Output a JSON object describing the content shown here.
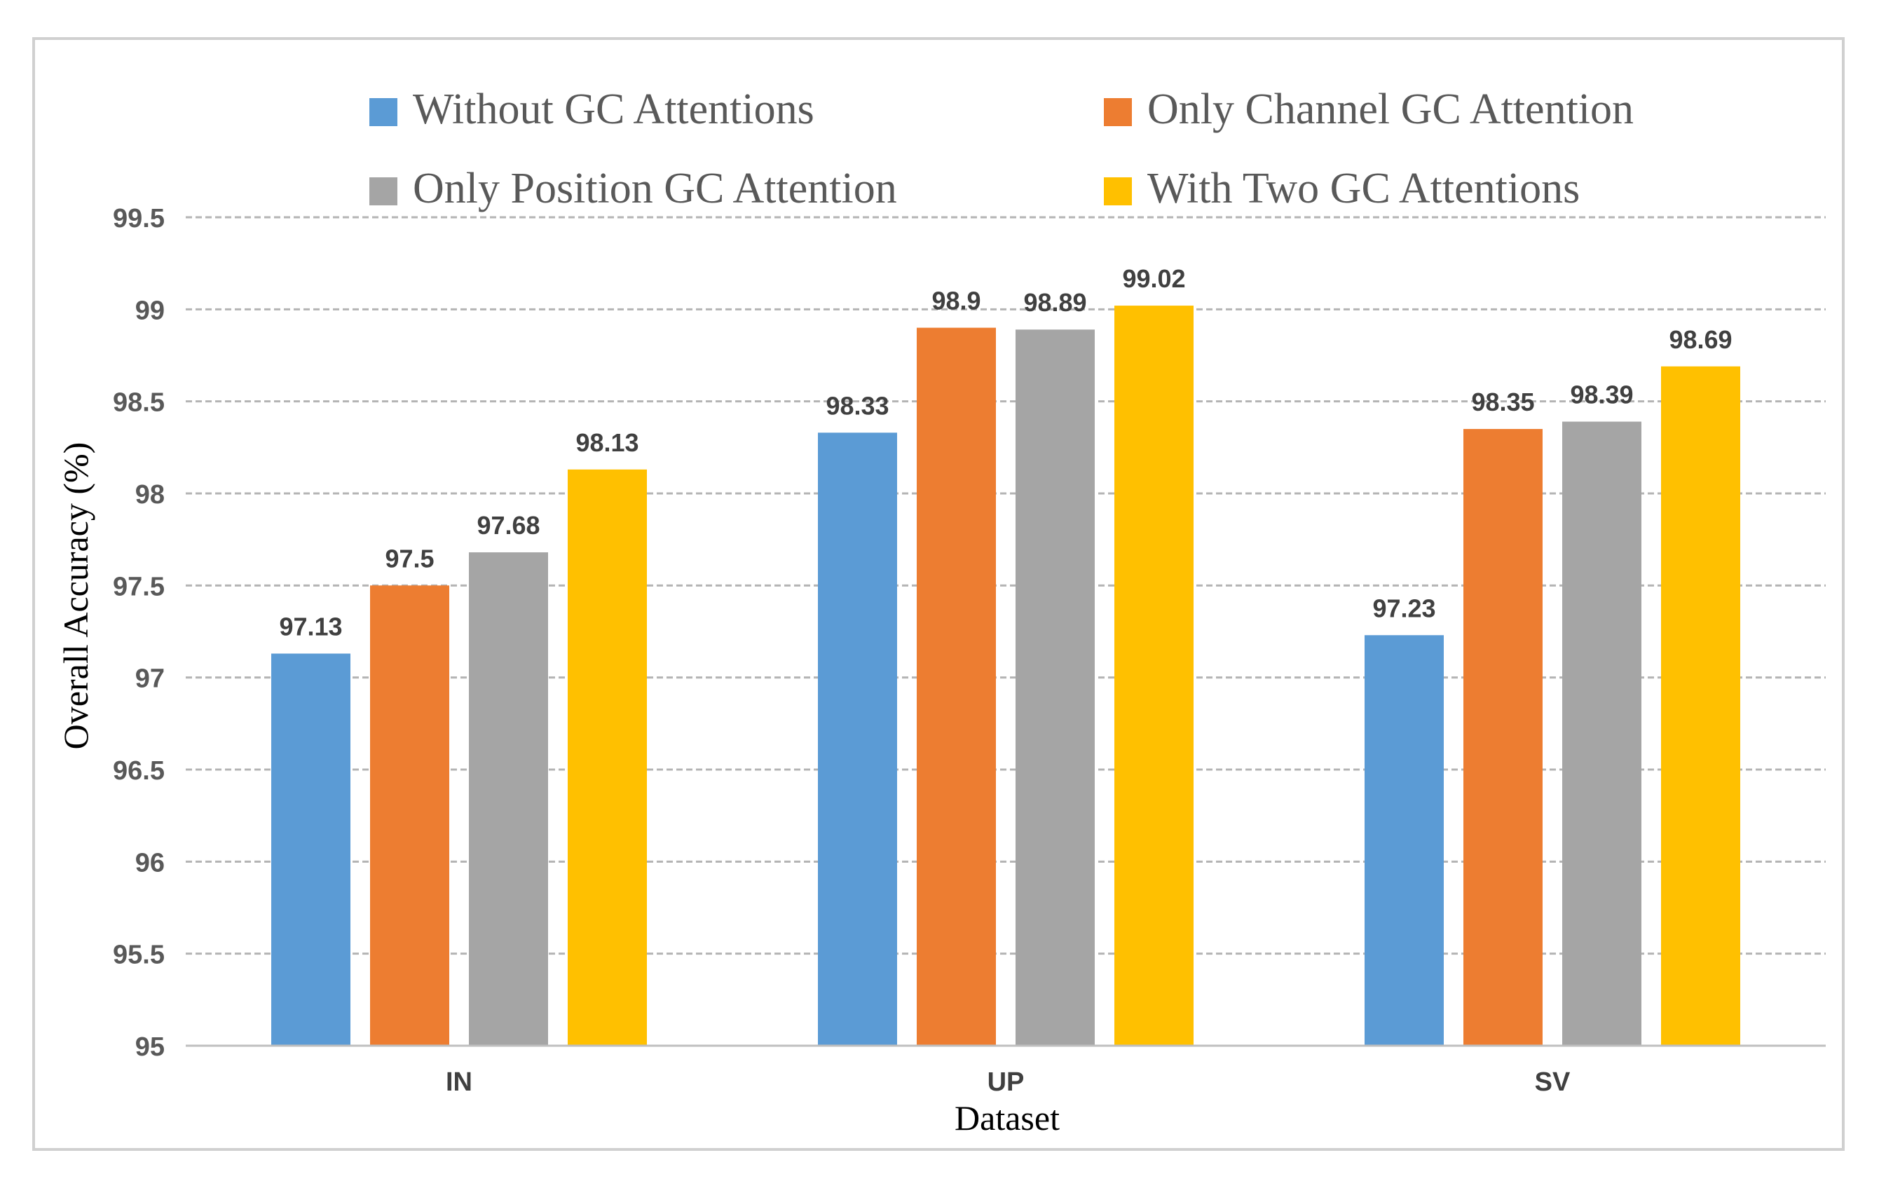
{
  "chart_data": {
    "type": "bar",
    "title": "",
    "xlabel": "Dataset",
    "ylabel": "Overall Accuracy (%)",
    "ylim": [
      95,
      99.5
    ],
    "yticks": [
      95,
      95.5,
      96,
      96.5,
      97,
      97.5,
      98,
      98.5,
      99,
      99.5
    ],
    "ytick_labels": [
      "95",
      "95.5",
      "96",
      "96.5",
      "97",
      "97.5",
      "98",
      "98.5",
      "99",
      "99.5"
    ],
    "grid": true,
    "legend_position": "top",
    "categories": [
      "IN",
      "UP",
      "SV"
    ],
    "series": [
      {
        "name": "Without GC Attentions",
        "color": "#5B9BD5",
        "values": [
          97.13,
          98.33,
          97.23
        ],
        "labels": [
          "97.13",
          "98.33",
          "97.23"
        ]
      },
      {
        "name": "Only Channel GC Attention",
        "color": "#ED7D31",
        "values": [
          97.5,
          98.9,
          98.35
        ],
        "labels": [
          "97.5",
          "98.9",
          "98.35"
        ]
      },
      {
        "name": "Only Position GC Attention",
        "color": "#A5A5A5",
        "values": [
          97.68,
          98.89,
          98.39
        ],
        "labels": [
          "97.68",
          "98.89",
          "98.39"
        ]
      },
      {
        "name": "With Two GC Attentions",
        "color": "#FFC000",
        "values": [
          98.13,
          99.02,
          98.69
        ],
        "labels": [
          "98.13",
          "99.02",
          "98.69"
        ]
      }
    ]
  }
}
